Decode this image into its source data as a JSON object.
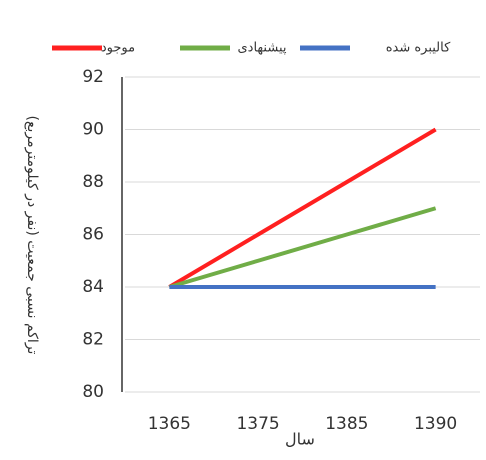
{
  "chart_data": {
    "type": "line",
    "categories": [
      "1365",
      "1375",
      "1385",
      "1390"
    ],
    "series": [
      {
        "name": "موجود",
        "color": "#ff2020",
        "values": [
          84,
          86,
          88,
          90
        ]
      },
      {
        "name": "پیشنهادی",
        "color": "#70ad47",
        "values": [
          84,
          85,
          86,
          87
        ]
      },
      {
        "name": "کالیبره شده",
        "color": "#4472c4",
        "values": [
          84,
          84,
          84,
          84
        ]
      }
    ],
    "ylim": [
      80,
      92
    ],
    "yticks": [
      80,
      82,
      84,
      86,
      88,
      90,
      92
    ],
    "grid": true,
    "y_label": "تراکم نسبی جمعیت (نفر در کیلومترمربع)",
    "x_label": "سال",
    "legend": "top"
  }
}
